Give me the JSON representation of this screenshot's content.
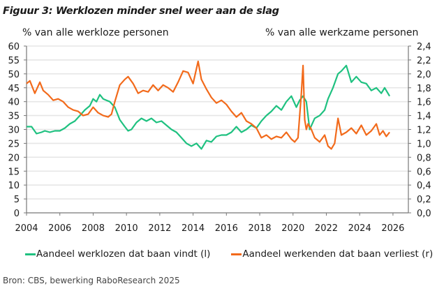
{
  "title": "Figuur 3: Werklozen minder snel weer aan de slag",
  "source": "Bron: CBS, bewerking RaboResearch 2025",
  "chart_data": {
    "type": "line",
    "title": "Figuur 3: Werklozen minder snel weer aan de slag",
    "ylabel_left": "% van alle werkloze personen",
    "ylabel_right": "% van alle werkzame personen",
    "xlabel": "",
    "xlim": [
      2004,
      2026.5
    ],
    "ylim_left": [
      0,
      60
    ],
    "ylim_right": [
      0,
      2.4
    ],
    "x_ticks": [
      "2004",
      "2006",
      "2008",
      "2010",
      "2012",
      "2014",
      "2016",
      "2018",
      "2020",
      "2022",
      "2024",
      "2026"
    ],
    "y_ticks_left": [
      "0",
      "5",
      "10",
      "15",
      "20",
      "25",
      "30",
      "35",
      "40",
      "45",
      "50",
      "55",
      "60"
    ],
    "y_ticks_right": [
      "0,0",
      "0,2",
      "0,4",
      "0,6",
      "0,8",
      "1,0",
      "1,2",
      "1,4",
      "1,6",
      "1,8",
      "2,0",
      "2,2",
      "2,4"
    ],
    "grid": true,
    "legend_position": "bottom",
    "series": [
      {
        "name": "Aandeel werklozen dat baan vindt (l)",
        "axis": "left",
        "color": "#1fc180",
        "x": [
          2004.0,
          2004.3,
          2004.6,
          2004.9,
          2005.1,
          2005.4,
          2005.7,
          2006.0,
          2006.3,
          2006.6,
          2006.9,
          2007.2,
          2007.5,
          2007.8,
          2008.0,
          2008.2,
          2008.4,
          2008.6,
          2008.8,
          2009.0,
          2009.3,
          2009.6,
          2009.9,
          2010.1,
          2010.3,
          2010.6,
          2010.9,
          2011.2,
          2011.5,
          2011.8,
          2012.1,
          2012.4,
          2012.7,
          2013.0,
          2013.3,
          2013.6,
          2013.9,
          2014.2,
          2014.5,
          2014.8,
          2015.1,
          2015.4,
          2015.7,
          2016.0,
          2016.3,
          2016.6,
          2016.9,
          2017.2,
          2017.5,
          2017.8,
          2018.1,
          2018.4,
          2018.7,
          2019.0,
          2019.3,
          2019.6,
          2019.9,
          2020.2,
          2020.4,
          2020.6,
          2020.8,
          2021.0,
          2021.3,
          2021.6,
          2021.9,
          2022.1,
          2022.4,
          2022.7,
          2022.9,
          2023.2,
          2023.5,
          2023.8,
          2024.1,
          2024.4,
          2024.7,
          2025.0,
          2025.3,
          2025.5,
          2025.8
        ],
        "values": [
          31,
          31,
          28.5,
          29,
          29.5,
          29,
          29.5,
          29.5,
          30.5,
          32,
          33,
          35,
          37,
          38.5,
          41,
          40,
          42.5,
          41,
          40.5,
          40,
          38,
          33.5,
          31,
          29.5,
          30,
          32.5,
          34,
          33,
          34,
          32.5,
          33,
          31.5,
          30,
          29,
          27,
          25,
          24,
          25,
          23,
          26,
          25.5,
          27.5,
          28,
          28,
          29,
          31,
          29,
          30,
          31.5,
          30.5,
          33,
          35,
          36.5,
          38.5,
          37,
          40,
          42,
          38,
          40.5,
          42,
          40,
          30,
          34,
          35,
          37,
          41,
          45,
          50,
          51,
          53,
          47,
          49,
          47,
          46.5,
          44,
          45,
          43,
          45,
          42
        ]
      },
      {
        "name": "Aandeel werkenden dat baan verliest (r)",
        "axis": "right",
        "color": "#f26a1b",
        "x": [
          2004.0,
          2004.2,
          2004.5,
          2004.8,
          2005.0,
          2005.3,
          2005.6,
          2005.9,
          2006.2,
          2006.5,
          2006.8,
          2007.1,
          2007.4,
          2007.7,
          2008.0,
          2008.3,
          2008.6,
          2008.9,
          2009.1,
          2009.3,
          2009.6,
          2009.9,
          2010.1,
          2010.4,
          2010.7,
          2011.0,
          2011.3,
          2011.6,
          2011.9,
          2012.2,
          2012.5,
          2012.8,
          2013.1,
          2013.4,
          2013.7,
          2014.0,
          2014.3,
          2014.5,
          2014.8,
          2015.1,
          2015.4,
          2015.7,
          2016.0,
          2016.3,
          2016.6,
          2016.9,
          2017.2,
          2017.5,
          2017.8,
          2018.1,
          2018.4,
          2018.7,
          2019.0,
          2019.3,
          2019.6,
          2019.9,
          2020.1,
          2020.3,
          2020.5,
          2020.6,
          2020.7,
          2020.8,
          2020.9,
          2021.1,
          2021.3,
          2021.6,
          2021.9,
          2022.1,
          2022.3,
          2022.5,
          2022.7,
          2022.9,
          2023.2,
          2023.5,
          2023.8,
          2024.1,
          2024.4,
          2024.7,
          2025.0,
          2025.2,
          2025.4,
          2025.6,
          2025.8
        ],
        "values": [
          1.86,
          1.9,
          1.72,
          1.88,
          1.76,
          1.7,
          1.62,
          1.64,
          1.6,
          1.52,
          1.48,
          1.46,
          1.4,
          1.42,
          1.52,
          1.44,
          1.4,
          1.38,
          1.42,
          1.6,
          1.84,
          1.92,
          1.96,
          1.86,
          1.72,
          1.76,
          1.74,
          1.84,
          1.76,
          1.84,
          1.8,
          1.74,
          1.88,
          2.04,
          2.02,
          1.86,
          2.18,
          1.92,
          1.78,
          1.66,
          1.58,
          1.62,
          1.56,
          1.46,
          1.38,
          1.44,
          1.32,
          1.28,
          1.22,
          1.08,
          1.12,
          1.06,
          1.1,
          1.08,
          1.16,
          1.06,
          1.02,
          1.08,
          1.72,
          2.12,
          1.34,
          1.2,
          1.28,
          1.2,
          1.08,
          1.02,
          1.12,
          0.96,
          0.92,
          1.0,
          1.36,
          1.12,
          1.16,
          1.22,
          1.14,
          1.26,
          1.12,
          1.18,
          1.28,
          1.12,
          1.18,
          1.1,
          1.16
        ]
      }
    ]
  }
}
